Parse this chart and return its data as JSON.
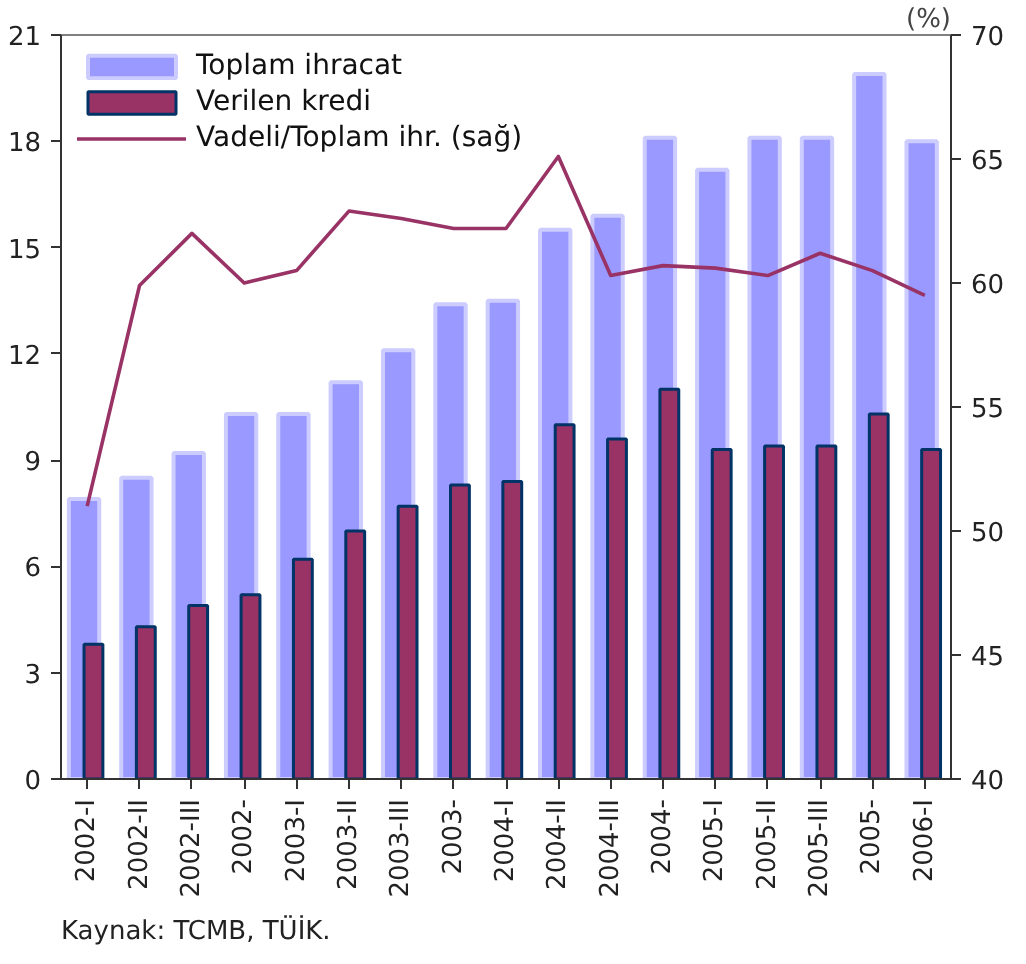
{
  "chart_data": {
    "type": "bar",
    "y2label": "(%)",
    "annotations": [
      "Kaynak: TCMB, TÜİK."
    ],
    "categories": [
      "2002-I",
      "2002-II",
      "2002-III",
      "2002-",
      "2003-I",
      "2003-II",
      "2003-III",
      "2003-",
      "2004-I",
      "2004-II",
      "2004-III",
      "2004-",
      "2005-I",
      "2005-II",
      "2005-III",
      "2005-",
      "2006-I"
    ],
    "series": [
      {
        "name": "Toplam ihracat",
        "color": "#9999ff",
        "values": [
          7.9,
          8.5,
          9.2,
          10.3,
          10.3,
          11.2,
          12.1,
          13.4,
          13.5,
          15.5,
          15.9,
          18.1,
          17.2,
          18.1,
          18.1,
          19.9,
          18.0
        ]
      },
      {
        "name": "Verilen kredi",
        "color": "#993366",
        "values": [
          3.8,
          4.3,
          4.9,
          5.2,
          6.2,
          7.0,
          7.7,
          8.3,
          8.4,
          10.0,
          9.6,
          11.0,
          9.3,
          9.4,
          9.4,
          10.3,
          9.3
        ]
      },
      {
        "name": "Vadeli/Toplam ihr. (sağ)",
        "type": "line",
        "axis": "y2",
        "color": "#993366",
        "values": [
          51.0,
          59.9,
          62.0,
          60.0,
          60.5,
          62.9,
          62.6,
          62.2,
          62.2,
          65.1,
          60.3,
          60.7,
          60.6,
          60.3,
          61.2,
          60.5,
          59.5
        ]
      }
    ],
    "ylim": [
      0,
      21
    ],
    "yticks": [
      0,
      3,
      6,
      9,
      12,
      15,
      18,
      21
    ],
    "y2lim": [
      40,
      70
    ],
    "y2ticks": [
      40,
      45,
      50,
      55,
      60,
      65,
      70
    ],
    "grid": false,
    "legend": "top left",
    "line_style": "solid",
    "marker": "none"
  }
}
